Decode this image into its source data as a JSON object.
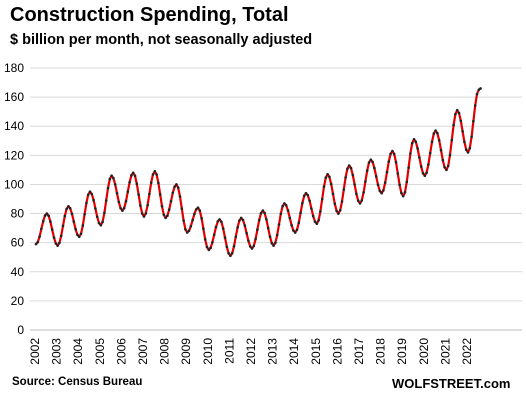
{
  "chart_data": {
    "type": "line",
    "title": "Construction  Spending,  Total",
    "subtitle": "$ billion per month, not seasonally adjusted",
    "source": "Source: Census Bureau",
    "brand": "WOLFSTREET.com",
    "xlabel": "",
    "ylabel": "",
    "ylim": [
      0,
      180
    ],
    "yticks": [
      0,
      20,
      40,
      60,
      80,
      100,
      120,
      140,
      160,
      180
    ],
    "xticks": [
      "2002",
      "2003",
      "2004",
      "2005",
      "2006",
      "2007",
      "2008",
      "2009",
      "2010",
      "2011",
      "2012",
      "2013",
      "2014",
      "2015",
      "2016",
      "2017",
      "2018",
      "2019",
      "2020",
      "2021",
      "2022"
    ],
    "grid": "horizontal",
    "line_color": "#e00000",
    "marker_color": "#222222",
    "series": [
      {
        "annual": [
          {
            "year": 2002,
            "low": 59,
            "peak": 80
          },
          {
            "year": 2003,
            "low": 58,
            "peak": 85
          },
          {
            "year": 2004,
            "low": 64,
            "peak": 95
          },
          {
            "year": 2005,
            "low": 72,
            "peak": 106
          },
          {
            "year": 2006,
            "low": 82,
            "peak": 108
          },
          {
            "year": 2007,
            "low": 78,
            "peak": 109
          },
          {
            "year": 2008,
            "low": 77,
            "peak": 100
          },
          {
            "year": 2009,
            "low": 67,
            "peak": 84
          },
          {
            "year": 2010,
            "low": 55,
            "peak": 76
          },
          {
            "year": 2011,
            "low": 51,
            "peak": 77
          },
          {
            "year": 2012,
            "low": 56,
            "peak": 82
          },
          {
            "year": 2013,
            "low": 58,
            "peak": 87
          },
          {
            "year": 2014,
            "low": 67,
            "peak": 94
          },
          {
            "year": 2015,
            "low": 73,
            "peak": 107
          },
          {
            "year": 2016,
            "low": 80,
            "peak": 113
          },
          {
            "year": 2017,
            "low": 87,
            "peak": 117
          },
          {
            "year": 2018,
            "low": 94,
            "peak": 123
          },
          {
            "year": 2019,
            "low": 92,
            "peak": 131
          },
          {
            "year": 2020,
            "low": 106,
            "peak": 137
          },
          {
            "year": 2021,
            "low": 110,
            "peak": 151
          },
          {
            "year": 2022,
            "low": 122,
            "peak": 165
          }
        ],
        "end_value": 166
      }
    ]
  }
}
